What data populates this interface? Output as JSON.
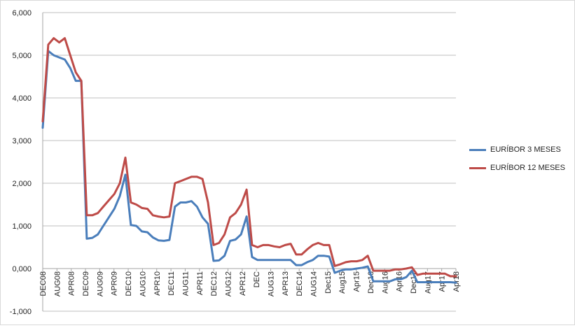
{
  "chart_data": {
    "type": "line",
    "title": "",
    "xlabel": "",
    "ylabel": "",
    "ylim": [
      -1,
      6
    ],
    "y_ticks": [
      "-1,000",
      "0,000",
      "1,000",
      "2,000",
      "3,000",
      "4,000",
      "5,000",
      "6,000"
    ],
    "grid": true,
    "legend_position": "right",
    "x_tick_labels": [
      "DEC08",
      "AUG08",
      "APR08",
      "DEC09",
      "AUG09",
      "APR09",
      "DEC10",
      "AUG10",
      "APR10",
      "DEC11",
      "AUG11",
      "APR11",
      "DEC12",
      "AUG12",
      "APR12",
      "DEC",
      "AUG13",
      "APR13",
      "DEC14",
      "AUG14",
      "Dec15",
      "Aug15",
      "Apr15",
      "Dec16",
      "Aug16",
      "Apr16",
      "Dec17",
      "Aug17",
      "Apr17",
      "Apr18"
    ],
    "series": [
      {
        "name": "EURÍBOR 3 MESES",
        "color": "#4a7ebb",
        "values": [
          3.3,
          5.1,
          5.0,
          4.95,
          4.9,
          4.7,
          4.4,
          4.4,
          0.7,
          0.72,
          0.8,
          1.0,
          1.2,
          1.4,
          1.7,
          2.2,
          1.02,
          1.0,
          0.87,
          0.85,
          0.73,
          0.66,
          0.65,
          0.67,
          1.45,
          1.55,
          1.55,
          1.58,
          1.45,
          1.2,
          1.05,
          0.18,
          0.19,
          0.3,
          0.65,
          0.68,
          0.8,
          1.22,
          0.27,
          0.2,
          0.2,
          0.2,
          0.2,
          0.2,
          0.2,
          0.2,
          0.08,
          0.08,
          0.15,
          0.2,
          0.3,
          0.3,
          0.28,
          -0.1,
          -0.05,
          -0.02,
          -0.02,
          0.0,
          0.02,
          0.05,
          -0.3,
          -0.3,
          -0.3,
          -0.3,
          -0.25,
          -0.25,
          -0.2,
          -0.05,
          -0.32,
          -0.32,
          -0.32,
          -0.32,
          -0.32,
          -0.32,
          -0.32,
          -0.33
        ]
      },
      {
        "name": "EURÍBOR 12 MESES",
        "color": "#be4b48",
        "values": [
          3.45,
          5.25,
          5.4,
          5.3,
          5.4,
          5.0,
          4.6,
          4.4,
          1.25,
          1.25,
          1.3,
          1.45,
          1.6,
          1.75,
          2.0,
          2.6,
          1.55,
          1.5,
          1.42,
          1.4,
          1.25,
          1.22,
          1.2,
          1.22,
          2.0,
          2.05,
          2.1,
          2.15,
          2.15,
          2.1,
          1.55,
          0.55,
          0.6,
          0.8,
          1.2,
          1.3,
          1.5,
          1.85,
          0.55,
          0.5,
          0.55,
          0.55,
          0.52,
          0.5,
          0.55,
          0.58,
          0.33,
          0.33,
          0.45,
          0.55,
          0.6,
          0.55,
          0.55,
          0.06,
          0.1,
          0.15,
          0.17,
          0.17,
          0.2,
          0.3,
          -0.05,
          -0.05,
          -0.05,
          -0.05,
          -0.02,
          -0.02,
          0.0,
          0.03,
          -0.15,
          -0.12,
          -0.12,
          -0.12,
          -0.12,
          -0.12,
          -0.18,
          -0.18
        ]
      }
    ]
  }
}
